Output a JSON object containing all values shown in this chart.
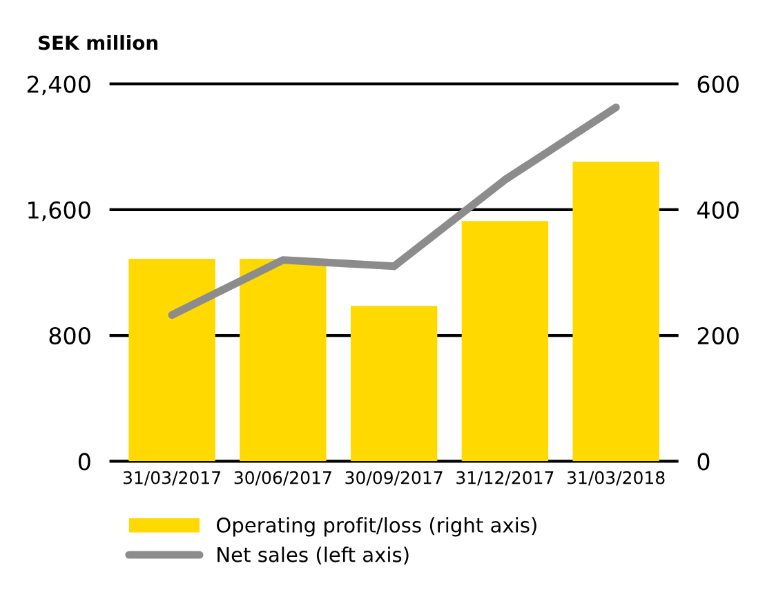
{
  "chart_data": {
    "type": "bar",
    "ylabel": "SEK million",
    "categories": [
      "31/03/2017",
      "30/06/2017",
      "30/09/2017",
      "31/12/2017",
      "31/03/2018"
    ],
    "series": [
      {
        "name": "Operating profit/loss (right axis)",
        "axis": "y2",
        "color": "#ffd900",
        "values": [
          322,
          322,
          247,
          382,
          476
        ]
      },
      {
        "name": "Net sales (left axis)",
        "type": "line",
        "color": "#8c8c8c",
        "values": [
          930,
          1280,
          1240,
          1790,
          2250
        ]
      }
    ],
    "ylim": [
      0,
      2400
    ],
    "yticks": [
      0,
      {
        "value": 800,
        "label": "800"
      },
      {
        "value": 1600,
        "label": "1,600"
      },
      {
        "value": 2400,
        "label": "2,400"
      }
    ],
    "y2lim": [
      0,
      600
    ],
    "y2ticks": [
      0,
      200,
      400,
      600
    ],
    "grid": "y",
    "legend": "bottom"
  }
}
